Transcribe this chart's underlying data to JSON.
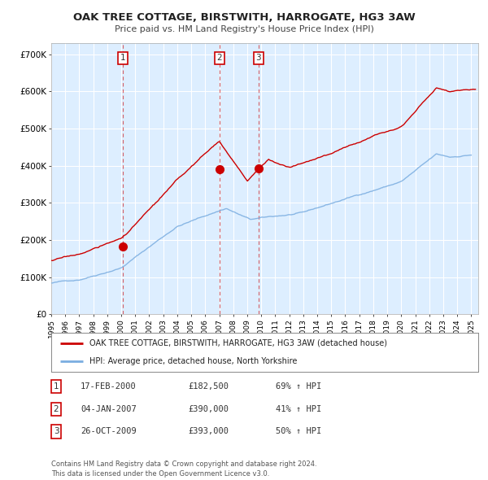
{
  "title": "OAK TREE COTTAGE, BIRSTWITH, HARROGATE, HG3 3AW",
  "subtitle": "Price paid vs. HM Land Registry's House Price Index (HPI)",
  "legend_line1": "OAK TREE COTTAGE, BIRSTWITH, HARROGATE, HG3 3AW (detached house)",
  "legend_line2": "HPI: Average price, detached house, North Yorkshire",
  "red_color": "#cc0000",
  "blue_color": "#7aade0",
  "bg_color": "#ddeeff",
  "grid_color": "#ffffff",
  "sale_dates": [
    2000.12,
    2007.01,
    2009.81
  ],
  "sale_prices": [
    182500,
    390000,
    393000
  ],
  "sale_labels": [
    "1",
    "2",
    "3"
  ],
  "table_rows": [
    [
      "1",
      "17-FEB-2000",
      "£182,500",
      "69% ↑ HPI"
    ],
    [
      "2",
      "04-JAN-2007",
      "£390,000",
      "41% ↑ HPI"
    ],
    [
      "3",
      "26-OCT-2009",
      "£393,000",
      "50% ↑ HPI"
    ]
  ],
  "footer": "Contains HM Land Registry data © Crown copyright and database right 2024.\nThis data is licensed under the Open Government Licence v3.0.",
  "ylim": [
    0,
    730000
  ],
  "xlim_start": 1995.0,
  "xlim_end": 2025.5
}
